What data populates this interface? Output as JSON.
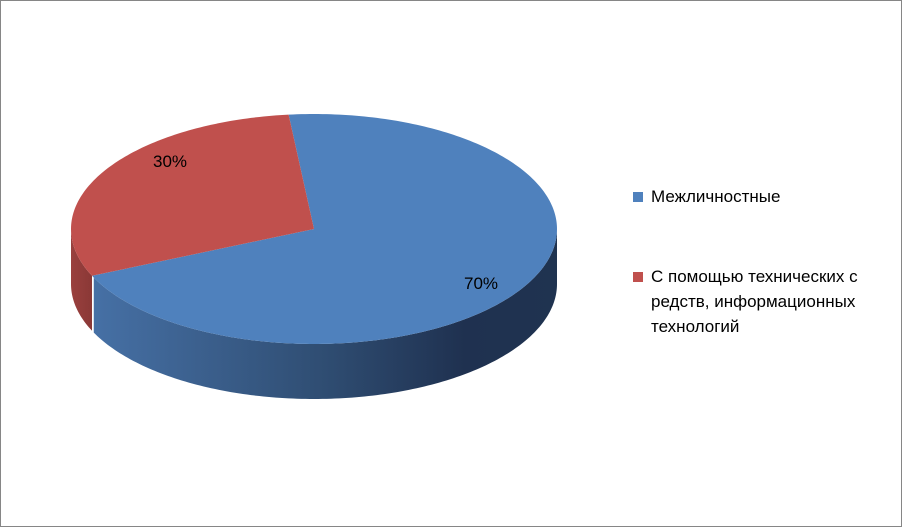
{
  "chart_data": {
    "type": "pie",
    "style": "3d",
    "categories": [
      "Межличностные",
      "С помощью технических средств, информационных технологий"
    ],
    "values": [
      70,
      30
    ],
    "data_labels": [
      "70%",
      "30%"
    ],
    "colors": [
      "#4f81bd",
      "#c0504d"
    ],
    "legend_position": "right",
    "legend": [
      {
        "label": "Межличностные",
        "color": "#4f81bd"
      },
      {
        "label": "С помощью технических с редств, информационных технологий",
        "color": "#c0504d"
      }
    ]
  }
}
